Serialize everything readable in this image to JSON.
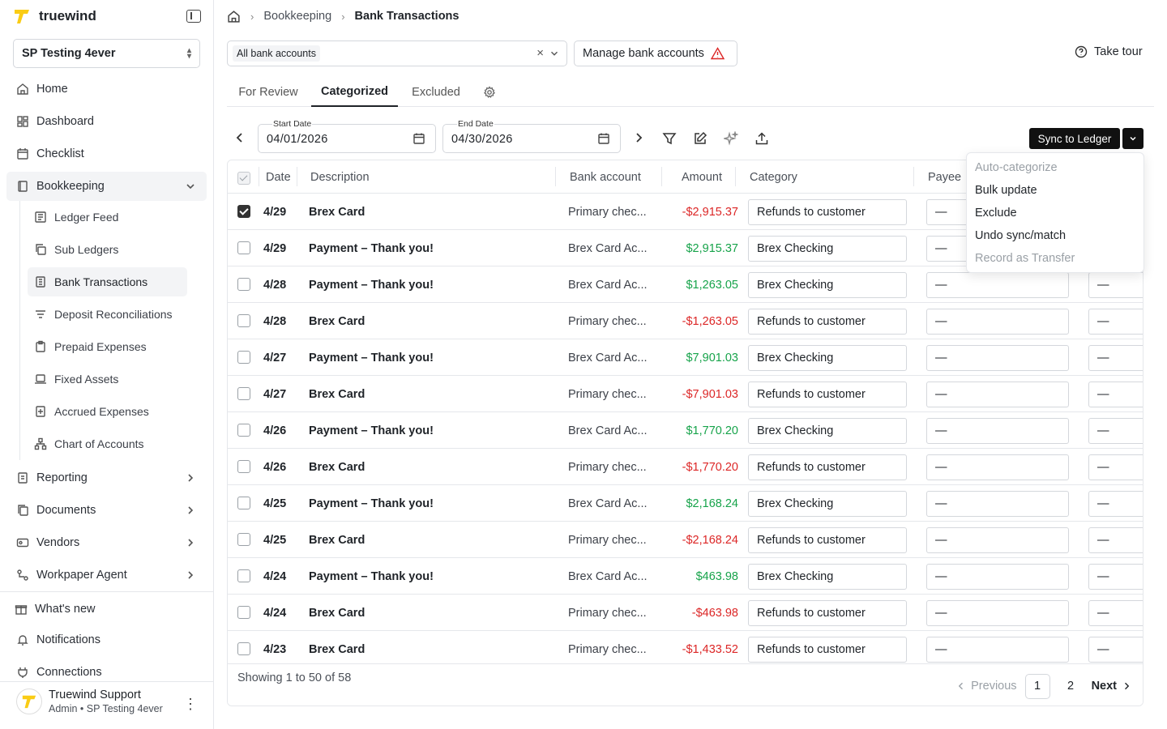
{
  "app": {
    "name": "truewind",
    "brand_color": "#facc15"
  },
  "org": {
    "name": "SP Testing 4ever"
  },
  "sidebar": {
    "items": [
      {
        "label": "Home",
        "icon": "home-icon"
      },
      {
        "label": "Dashboard",
        "icon": "dashboard-icon"
      },
      {
        "label": "Checklist",
        "icon": "calendar-check-icon"
      },
      {
        "label": "Bookkeeping",
        "icon": "book-icon"
      },
      {
        "label": "Reporting",
        "icon": "report-icon"
      },
      {
        "label": "Documents",
        "icon": "documents-icon"
      },
      {
        "label": "Vendors",
        "icon": "vendor-card-icon"
      },
      {
        "label": "Workpaper Agent",
        "icon": "workflow-icon"
      }
    ],
    "bookkeeping_sub": [
      {
        "label": "Ledger Feed"
      },
      {
        "label": "Sub Ledgers"
      },
      {
        "label": "Bank Transactions"
      },
      {
        "label": "Deposit Reconciliations"
      },
      {
        "label": "Prepaid Expenses"
      },
      {
        "label": "Fixed Assets"
      },
      {
        "label": "Accrued Expenses"
      },
      {
        "label": "Chart of Accounts"
      }
    ],
    "footer_items": [
      {
        "label": "What's new"
      },
      {
        "label": "Notifications"
      },
      {
        "label": "Connections"
      }
    ],
    "user": {
      "name": "Truewind Support",
      "role": "Admin • SP Testing 4ever"
    }
  },
  "breadcrumb": {
    "parent": "Bookkeeping",
    "current": "Bank Transactions"
  },
  "account_filter": {
    "chip": "All bank accounts",
    "clear": "×"
  },
  "manage_button": "Manage bank accounts",
  "take_tour": "Take tour",
  "tabs": [
    {
      "label": "For Review"
    },
    {
      "label": "Categorized",
      "active": true
    },
    {
      "label": "Excluded"
    }
  ],
  "dates": {
    "start_label": "Start Date",
    "start": "04/01/2026",
    "end_label": "End Date",
    "end": "04/30/2026"
  },
  "sync_button": "Sync to Ledger",
  "columns": {
    "date": "Date",
    "description": "Description",
    "bank": "Bank account",
    "amount": "Amount",
    "category": "Category",
    "payee": "Payee"
  },
  "rows": [
    {
      "date": "4/29",
      "description": "Brex Card",
      "bank": "Primary chec...",
      "amount": "-$2,915.37",
      "sign": "neg",
      "category": "Refunds to customer",
      "payee": "—",
      "extra": "—",
      "checked": true
    },
    {
      "date": "4/29",
      "description": "Payment – Thank you!",
      "bank": "Brex Card Ac...",
      "amount": "$2,915.37",
      "sign": "pos",
      "category": "Brex Checking",
      "payee": "—",
      "extra": "—"
    },
    {
      "date": "4/28",
      "description": "Payment – Thank you!",
      "bank": "Brex Card Ac...",
      "amount": "$1,263.05",
      "sign": "pos",
      "category": "Brex Checking",
      "payee": "—",
      "extra": "—"
    },
    {
      "date": "4/28",
      "description": "Brex Card",
      "bank": "Primary chec...",
      "amount": "-$1,263.05",
      "sign": "neg",
      "category": "Refunds to customer",
      "payee": "—",
      "extra": "—"
    },
    {
      "date": "4/27",
      "description": "Payment – Thank you!",
      "bank": "Brex Card Ac...",
      "amount": "$7,901.03",
      "sign": "pos",
      "category": "Brex Checking",
      "payee": "—",
      "extra": "—"
    },
    {
      "date": "4/27",
      "description": "Brex Card",
      "bank": "Primary chec...",
      "amount": "-$7,901.03",
      "sign": "neg",
      "category": "Refunds to customer",
      "payee": "—",
      "extra": "—"
    },
    {
      "date": "4/26",
      "description": "Payment – Thank you!",
      "bank": "Brex Card Ac...",
      "amount": "$1,770.20",
      "sign": "pos",
      "category": "Brex Checking",
      "payee": "—",
      "extra": "—"
    },
    {
      "date": "4/26",
      "description": "Brex Card",
      "bank": "Primary chec...",
      "amount": "-$1,770.20",
      "sign": "neg",
      "category": "Refunds to customer",
      "payee": "—",
      "extra": "—"
    },
    {
      "date": "4/25",
      "description": "Payment – Thank you!",
      "bank": "Brex Card Ac...",
      "amount": "$2,168.24",
      "sign": "pos",
      "category": "Brex Checking",
      "payee": "—",
      "extra": "—"
    },
    {
      "date": "4/25",
      "description": "Brex Card",
      "bank": "Primary chec...",
      "amount": "-$2,168.24",
      "sign": "neg",
      "category": "Refunds to customer",
      "payee": "—",
      "extra": "—"
    },
    {
      "date": "4/24",
      "description": "Payment – Thank you!",
      "bank": "Brex Card Ac...",
      "amount": "$463.98",
      "sign": "pos",
      "category": "Brex Checking",
      "payee": "—",
      "extra": "—"
    },
    {
      "date": "4/24",
      "description": "Brex Card",
      "bank": "Primary chec...",
      "amount": "-$463.98",
      "sign": "neg",
      "category": "Refunds to customer",
      "payee": "—",
      "extra": "—"
    },
    {
      "date": "4/23",
      "description": "Brex Card",
      "bank": "Primary chec...",
      "amount": "-$1,433.52",
      "sign": "neg",
      "category": "Refunds to customer",
      "payee": "—",
      "extra": "—"
    }
  ],
  "pagination": {
    "showing": "Showing 1 to 50 of 58",
    "previous": "Previous",
    "pages": [
      "1",
      "2"
    ],
    "next": "Next",
    "current_page": "1"
  },
  "dropdown_menu": [
    {
      "label": "Auto-categorize",
      "disabled": true
    },
    {
      "label": "Bulk update"
    },
    {
      "label": "Exclude"
    },
    {
      "label": "Undo sync/match"
    },
    {
      "label": "Record as Transfer",
      "disabled": true
    }
  ],
  "colors": {
    "negative": "#dc2626",
    "positive": "#16a34a",
    "primary_button": "#111111"
  }
}
